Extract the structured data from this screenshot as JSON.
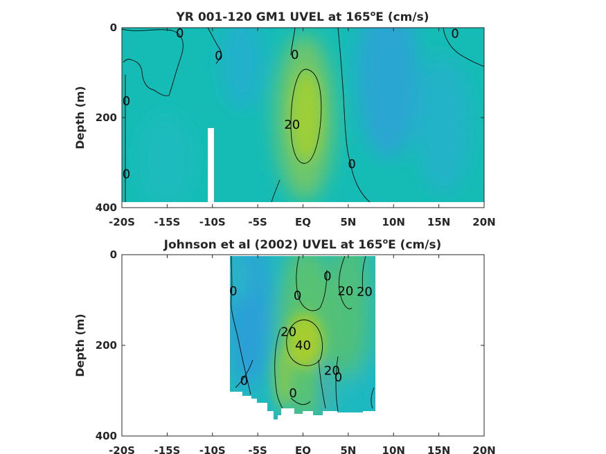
{
  "chart_data": [
    {
      "type": "heatmap",
      "title_main": "YR 001-120 GM1 UVEL at 165",
      "title_sup": "o",
      "title_end": "E (cm/s)",
      "ylabel": "Depth (m)",
      "x_ticks": [
        "-20S",
        "-15S",
        "-10S",
        "-5S",
        "EQ",
        "5N",
        "10N",
        "15N",
        "20N"
      ],
      "x_tick_values": [
        -20,
        -15,
        -10,
        -5,
        0,
        5,
        10,
        15,
        20
      ],
      "y_ticks": [
        "0",
        "200",
        "400"
      ],
      "y_tick_values": [
        0,
        200,
        400
      ],
      "xlim": [
        -20,
        20
      ],
      "ylim": [
        0,
        400
      ],
      "colormap": {
        "low": "#3a8fe3",
        "mid": "#14bdb6",
        "high": "#a6cd2e"
      },
      "contour_labels": [
        {
          "text": "0",
          "lat": -13.6,
          "depth": 12
        },
        {
          "text": "0",
          "lat": -9.3,
          "depth": 62
        },
        {
          "text": "0",
          "lat": 16.8,
          "depth": 13
        },
        {
          "text": "0",
          "lat": -19.5,
          "depth": 163
        },
        {
          "text": "0",
          "lat": -19.5,
          "depth": 325
        },
        {
          "text": "0",
          "lat": -0.9,
          "depth": 60
        },
        {
          "text": "20",
          "lat": -1.2,
          "depth": 215
        },
        {
          "text": "0",
          "lat": 5.4,
          "depth": 303
        }
      ]
    },
    {
      "type": "heatmap",
      "title_main": "Johnson et al (2002) UVEL at 165",
      "title_sup": "o",
      "title_end": "E (cm/s)",
      "ylabel": "Depth (m)",
      "x_ticks": [
        "-20S",
        "-15S",
        "-10S",
        "-5S",
        "EQ",
        "5N",
        "10N",
        "15N",
        "20N"
      ],
      "x_tick_values": [
        -20,
        -15,
        -10,
        -5,
        0,
        5,
        10,
        15,
        20
      ],
      "y_ticks": [
        "0",
        "200",
        "400"
      ],
      "y_tick_values": [
        0,
        200,
        400
      ],
      "xlim": [
        -20,
        20
      ],
      "ylim": [
        0,
        400
      ],
      "data_lat_range": [
        -8,
        8
      ],
      "contour_labels": [
        {
          "text": "0",
          "lat": -7.7,
          "depth": 80
        },
        {
          "text": "0",
          "lat": -0.6,
          "depth": 90
        },
        {
          "text": "0",
          "lat": 2.7,
          "depth": 47
        },
        {
          "text": "20",
          "lat": 4.7,
          "depth": 80
        },
        {
          "text": "20",
          "lat": 6.8,
          "depth": 82
        },
        {
          "text": "20",
          "lat": -1.6,
          "depth": 170
        },
        {
          "text": "40",
          "lat": 0.0,
          "depth": 200
        },
        {
          "text": "20",
          "lat": 3.2,
          "depth": 256
        },
        {
          "text": "0",
          "lat": 3.9,
          "depth": 270
        },
        {
          "text": "0",
          "lat": -6.5,
          "depth": 278
        },
        {
          "text": "0",
          "lat": -1.1,
          "depth": 305
        }
      ]
    }
  ]
}
